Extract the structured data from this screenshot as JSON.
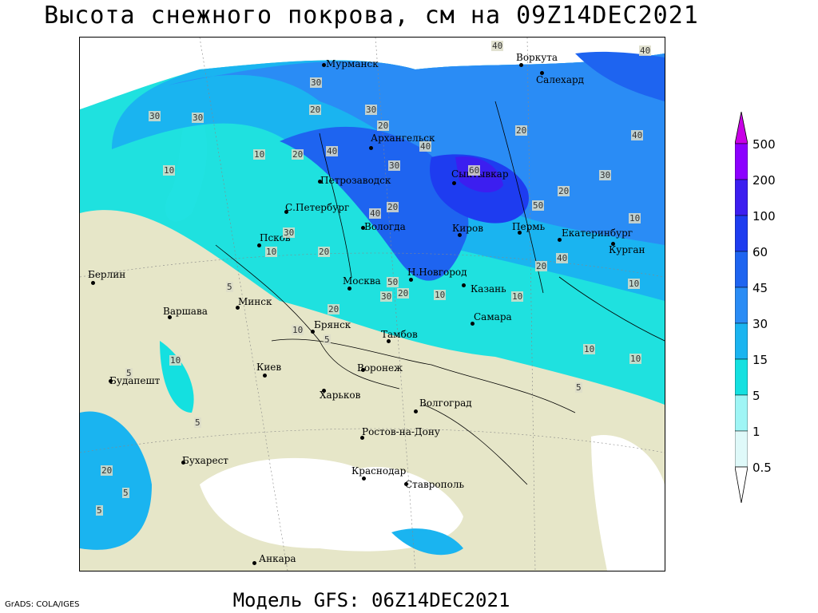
{
  "title": "Высота снежного покрова, см на 09Z14DEC2021",
  "footer": "Модель GFS: 06Z14DEC2021",
  "credit": "GrADS: COLA/IGES",
  "legend": {
    "levels": [
      "0.5",
      "1",
      "5",
      "15",
      "30",
      "45",
      "60",
      "100",
      "200",
      "500"
    ],
    "colors": [
      "#ffffff",
      "#9ff5f5",
      "#14e0e0",
      "#1ab4f0",
      "#2a8cf5",
      "#1e64f0",
      "#1e3cf0",
      "#3c1ef0",
      "#8c00ff",
      "#c800e6"
    ]
  },
  "cities": [
    {
      "name": "Мурманск"
    },
    {
      "name": "Воркута"
    },
    {
      "name": "Салехард"
    },
    {
      "name": "Архангельск"
    },
    {
      "name": "Петрозаводск"
    },
    {
      "name": "Сыктывкар"
    },
    {
      "name": "С.Петербург"
    },
    {
      "name": "Вологда"
    },
    {
      "name": "Киров"
    },
    {
      "name": "Пермь"
    },
    {
      "name": "Екатеринбург"
    },
    {
      "name": "Курган"
    },
    {
      "name": "Псков"
    },
    {
      "name": "Берлин"
    },
    {
      "name": "Н.Новгород"
    },
    {
      "name": "Москва"
    },
    {
      "name": "Казань"
    },
    {
      "name": "Минск"
    },
    {
      "name": "Варшава"
    },
    {
      "name": "Брянск"
    },
    {
      "name": "Тамбов"
    },
    {
      "name": "Самара"
    },
    {
      "name": "Киев"
    },
    {
      "name": "Воронеж"
    },
    {
      "name": "Будапешт"
    },
    {
      "name": "Харьков"
    },
    {
      "name": "Волгоград"
    },
    {
      "name": "Ростов-на-Дону"
    },
    {
      "name": "Бухарест"
    },
    {
      "name": "Краснодар"
    },
    {
      "name": "Ставрополь"
    },
    {
      "name": "Анкара"
    }
  ],
  "contour_labels": [
    "40",
    "40",
    "30",
    "30",
    "20",
    "30",
    "10",
    "30",
    "20",
    "10",
    "40",
    "20",
    "40",
    "30",
    "20",
    "60",
    "50",
    "40",
    "20",
    "10",
    "30",
    "20",
    "30",
    "40",
    "10",
    "20",
    "50",
    "10",
    "40",
    "20",
    "10",
    "5",
    "10",
    "20",
    "10",
    "5",
    "20",
    "10",
    "5",
    "5",
    "10",
    "10",
    "5",
    "20",
    "30",
    "5",
    "5"
  ]
}
